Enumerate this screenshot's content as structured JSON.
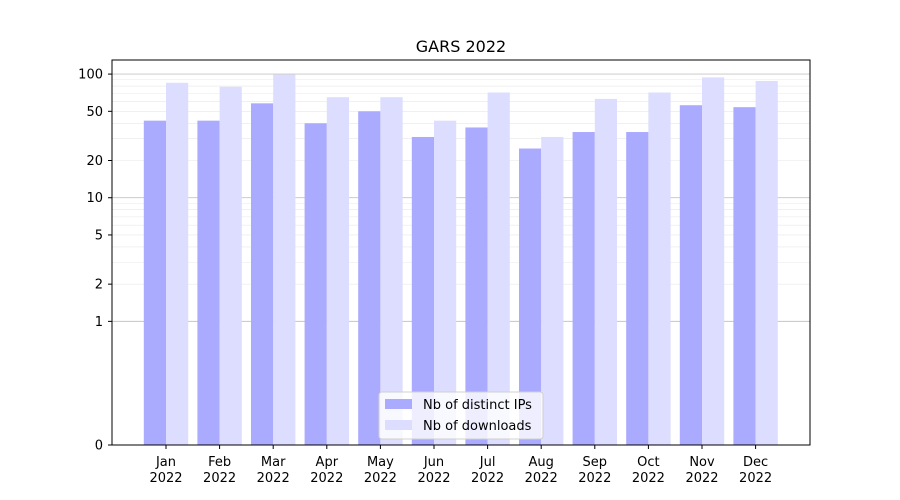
{
  "chart_data": {
    "type": "bar",
    "title": "GARS 2022",
    "xlabel": "",
    "ylabel": "",
    "yscale": "symlog",
    "ylim": [
      0,
      130
    ],
    "yticks": [
      0,
      1,
      2,
      5,
      10,
      20,
      50,
      100
    ],
    "categories": [
      [
        "Jan",
        "2022"
      ],
      [
        "Feb",
        "2022"
      ],
      [
        "Mar",
        "2022"
      ],
      [
        "Apr",
        "2022"
      ],
      [
        "May",
        "2022"
      ],
      [
        "Jun",
        "2022"
      ],
      [
        "Jul",
        "2022"
      ],
      [
        "Aug",
        "2022"
      ],
      [
        "Sep",
        "2022"
      ],
      [
        "Oct",
        "2022"
      ],
      [
        "Nov",
        "2022"
      ],
      [
        "Dec",
        "2022"
      ]
    ],
    "series": [
      {
        "name": "Nb of distinct IPs",
        "color": "#aaaaff",
        "values": [
          42,
          42,
          58,
          40,
          50,
          31,
          37,
          25,
          34,
          34,
          56,
          54
        ]
      },
      {
        "name": "Nb of downloads",
        "color": "#ddddff",
        "values": [
          85,
          79,
          99,
          65,
          65,
          42,
          71,
          31,
          63,
          71,
          94,
          88
        ]
      }
    ],
    "legend_position": "bottom-center",
    "grid": true
  }
}
